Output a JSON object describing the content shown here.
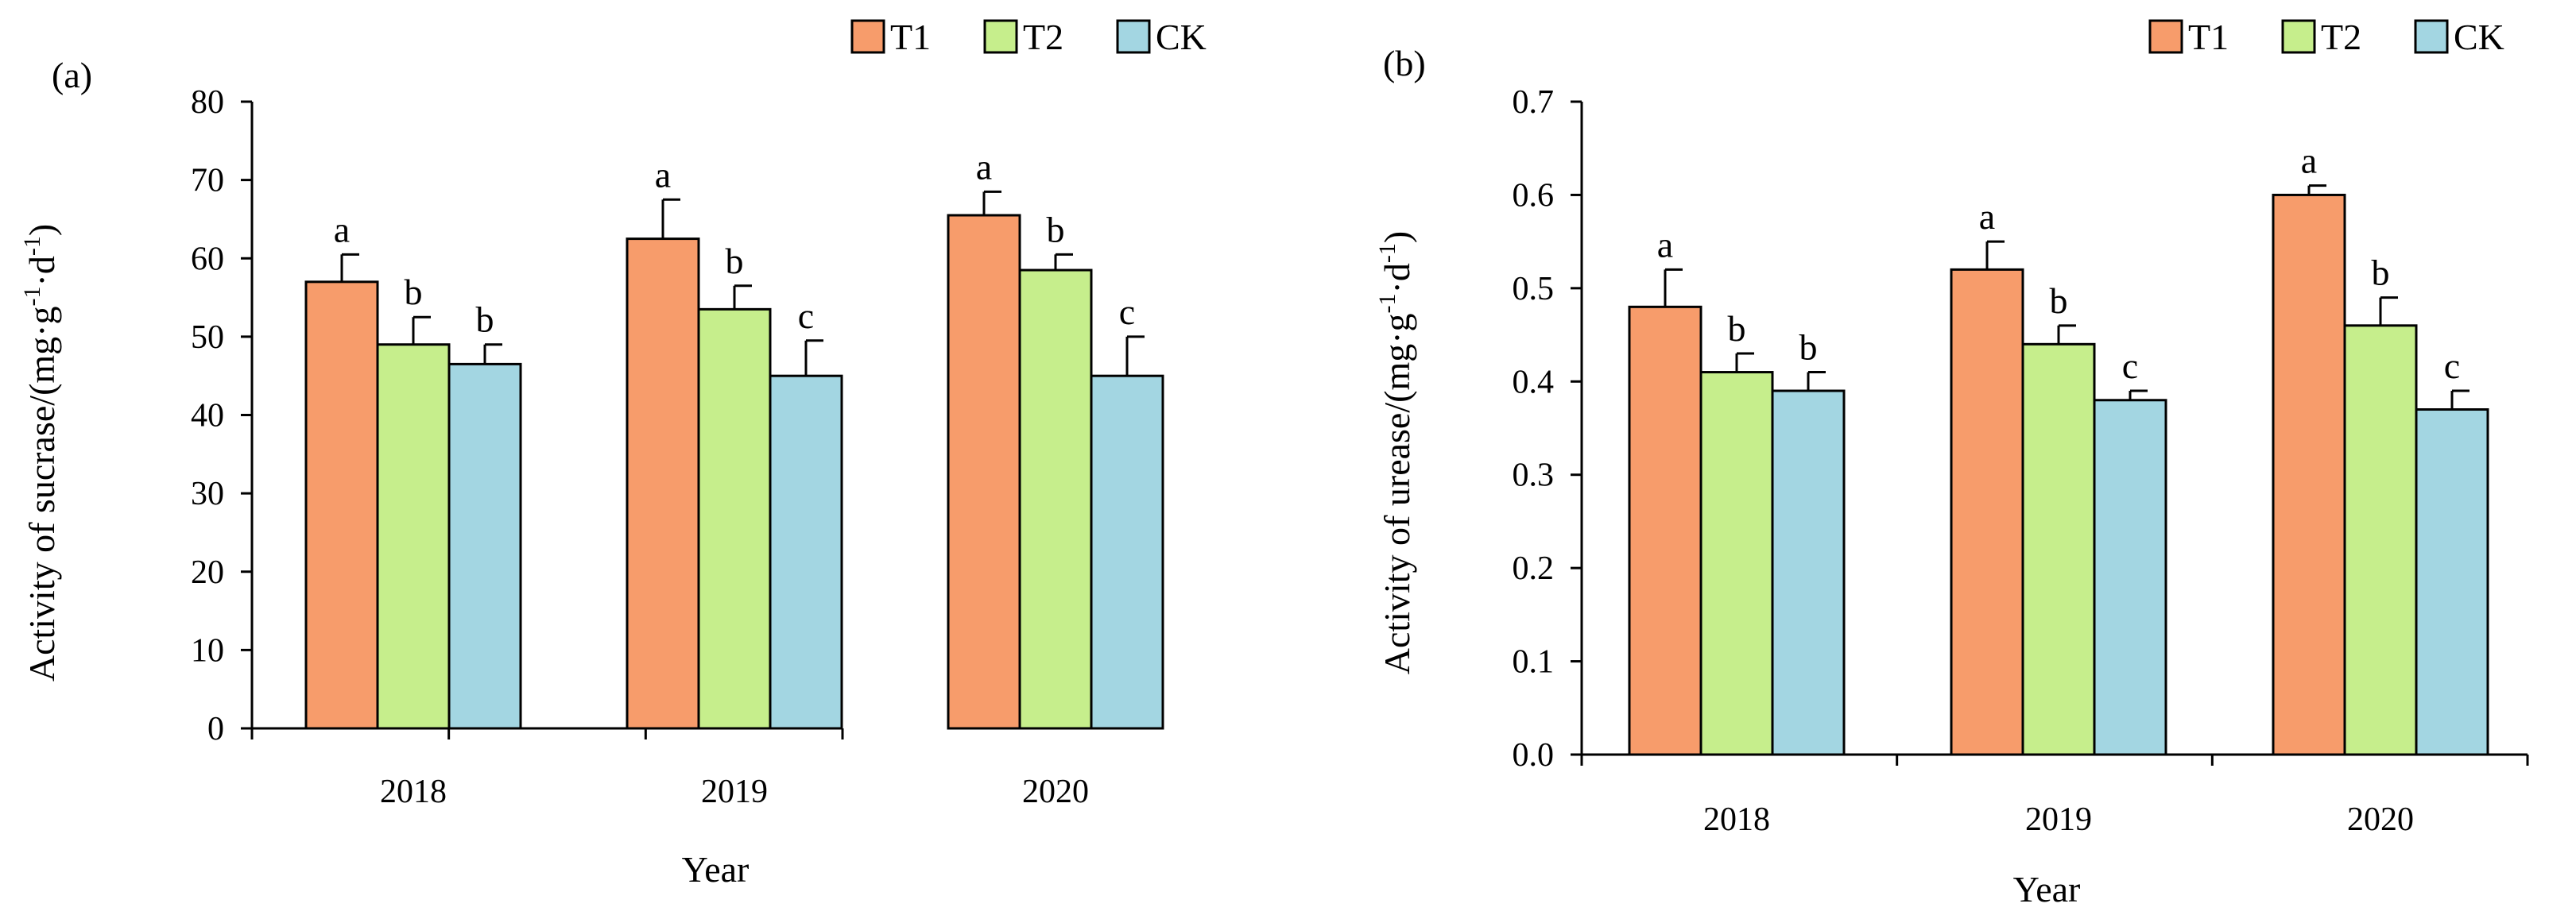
{
  "colors": {
    "T1": "#F79C6B",
    "T2": "#C6EE8C",
    "CK": "#A3D6E2",
    "axis": "#000000",
    "background": "#FFFFFF"
  },
  "chart_data": [
    {
      "panel_label": "(a)",
      "type": "bar",
      "title": "",
      "xlabel": "Year",
      "ylabel": "Activity of sucrase/(mg·g⁻¹·d⁻¹)",
      "ylabel_main": "Activity of sucrase/(mg·g",
      "ylabel_mid": "·d",
      "ylabel_end": ")",
      "ylabel_sup": "-1",
      "categories": [
        "2018",
        "2019",
        "2020"
      ],
      "ylim": [
        0,
        80
      ],
      "yticks": [
        "0",
        "10",
        "20",
        "30",
        "40",
        "50",
        "60",
        "70",
        "80"
      ],
      "legend_position": "top-right",
      "series": [
        {
          "name": "T1",
          "values": [
            57.0,
            62.5,
            65.5
          ],
          "errors": [
            3.5,
            5.0,
            3.0
          ],
          "letters": [
            "a",
            "a",
            "a"
          ]
        },
        {
          "name": "T2",
          "values": [
            49.0,
            53.5,
            58.5
          ],
          "errors": [
            3.5,
            3.0,
            2.0
          ],
          "letters": [
            "b",
            "b",
            "b"
          ]
        },
        {
          "name": "CK",
          "values": [
            46.5,
            45.0,
            45.0
          ],
          "errors": [
            2.5,
            4.5,
            5.0
          ],
          "letters": [
            "b",
            "c",
            "c"
          ]
        }
      ]
    },
    {
      "panel_label": "(b)",
      "type": "bar",
      "title": "",
      "xlabel": "Year",
      "ylabel": "Activity of urease/(mg·g⁻¹·d⁻¹)",
      "ylabel_main": "Activity of urease/(mg·g",
      "ylabel_mid": "·d",
      "ylabel_end": ")",
      "ylabel_sup": "-1",
      "categories": [
        "2018",
        "2019",
        "2020"
      ],
      "ylim": [
        0,
        0.7
      ],
      "yticks": [
        "0.0",
        "0.1",
        "0.2",
        "0.3",
        "0.4",
        "0.5",
        "0.6",
        "0.7"
      ],
      "legend_position": "top-right",
      "series": [
        {
          "name": "T1",
          "values": [
            0.48,
            0.52,
            0.6
          ],
          "errors": [
            0.04,
            0.03,
            0.01
          ],
          "letters": [
            "a",
            "a",
            "a"
          ]
        },
        {
          "name": "T2",
          "values": [
            0.41,
            0.44,
            0.46
          ],
          "errors": [
            0.02,
            0.02,
            0.03
          ],
          "letters": [
            "b",
            "b",
            "b"
          ]
        },
        {
          "name": "CK",
          "values": [
            0.39,
            0.38,
            0.37
          ],
          "errors": [
            0.02,
            0.01,
            0.02
          ],
          "letters": [
            "b",
            "c",
            "c"
          ]
        }
      ]
    }
  ]
}
